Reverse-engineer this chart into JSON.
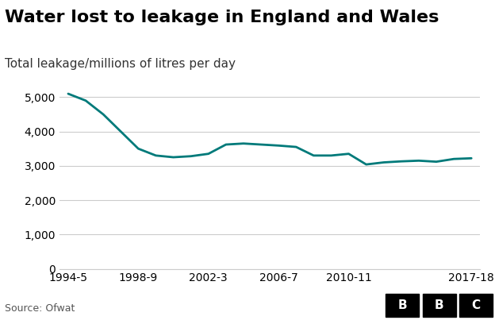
{
  "title": "Water lost to leakage in England and Wales",
  "subtitle": "Total leakage/millions of litres per day",
  "source": "Source: Ofwat",
  "line_color": "#007a7a",
  "background_color": "#ffffff",
  "x_labels": [
    "1994-5",
    "1998-9",
    "2002-3",
    "2006-7",
    "2010-11",
    "2017-18"
  ],
  "x_values": [
    1994,
    1995,
    1996,
    1997,
    1998,
    1999,
    2000,
    2001,
    2002,
    2003,
    2004,
    2005,
    2006,
    2007,
    2008,
    2009,
    2010,
    2011,
    2012,
    2013,
    2014,
    2015,
    2016,
    2017
  ],
  "y_values": [
    5100,
    4900,
    4500,
    4000,
    3500,
    3300,
    3250,
    3280,
    3350,
    3620,
    3650,
    3620,
    3590,
    3550,
    3300,
    3300,
    3350,
    3040,
    3100,
    3130,
    3150,
    3120,
    3200,
    3220
  ],
  "x_tick_positions": [
    0,
    4,
    8,
    12,
    16,
    23
  ],
  "ylim": [
    0,
    5500
  ],
  "yticks": [
    0,
    1000,
    2000,
    3000,
    4000,
    5000
  ],
  "line_width": 2.0,
  "title_fontsize": 16,
  "subtitle_fontsize": 11,
  "tick_fontsize": 10,
  "source_fontsize": 9,
  "bbc_letters": [
    "B",
    "B",
    "C"
  ]
}
